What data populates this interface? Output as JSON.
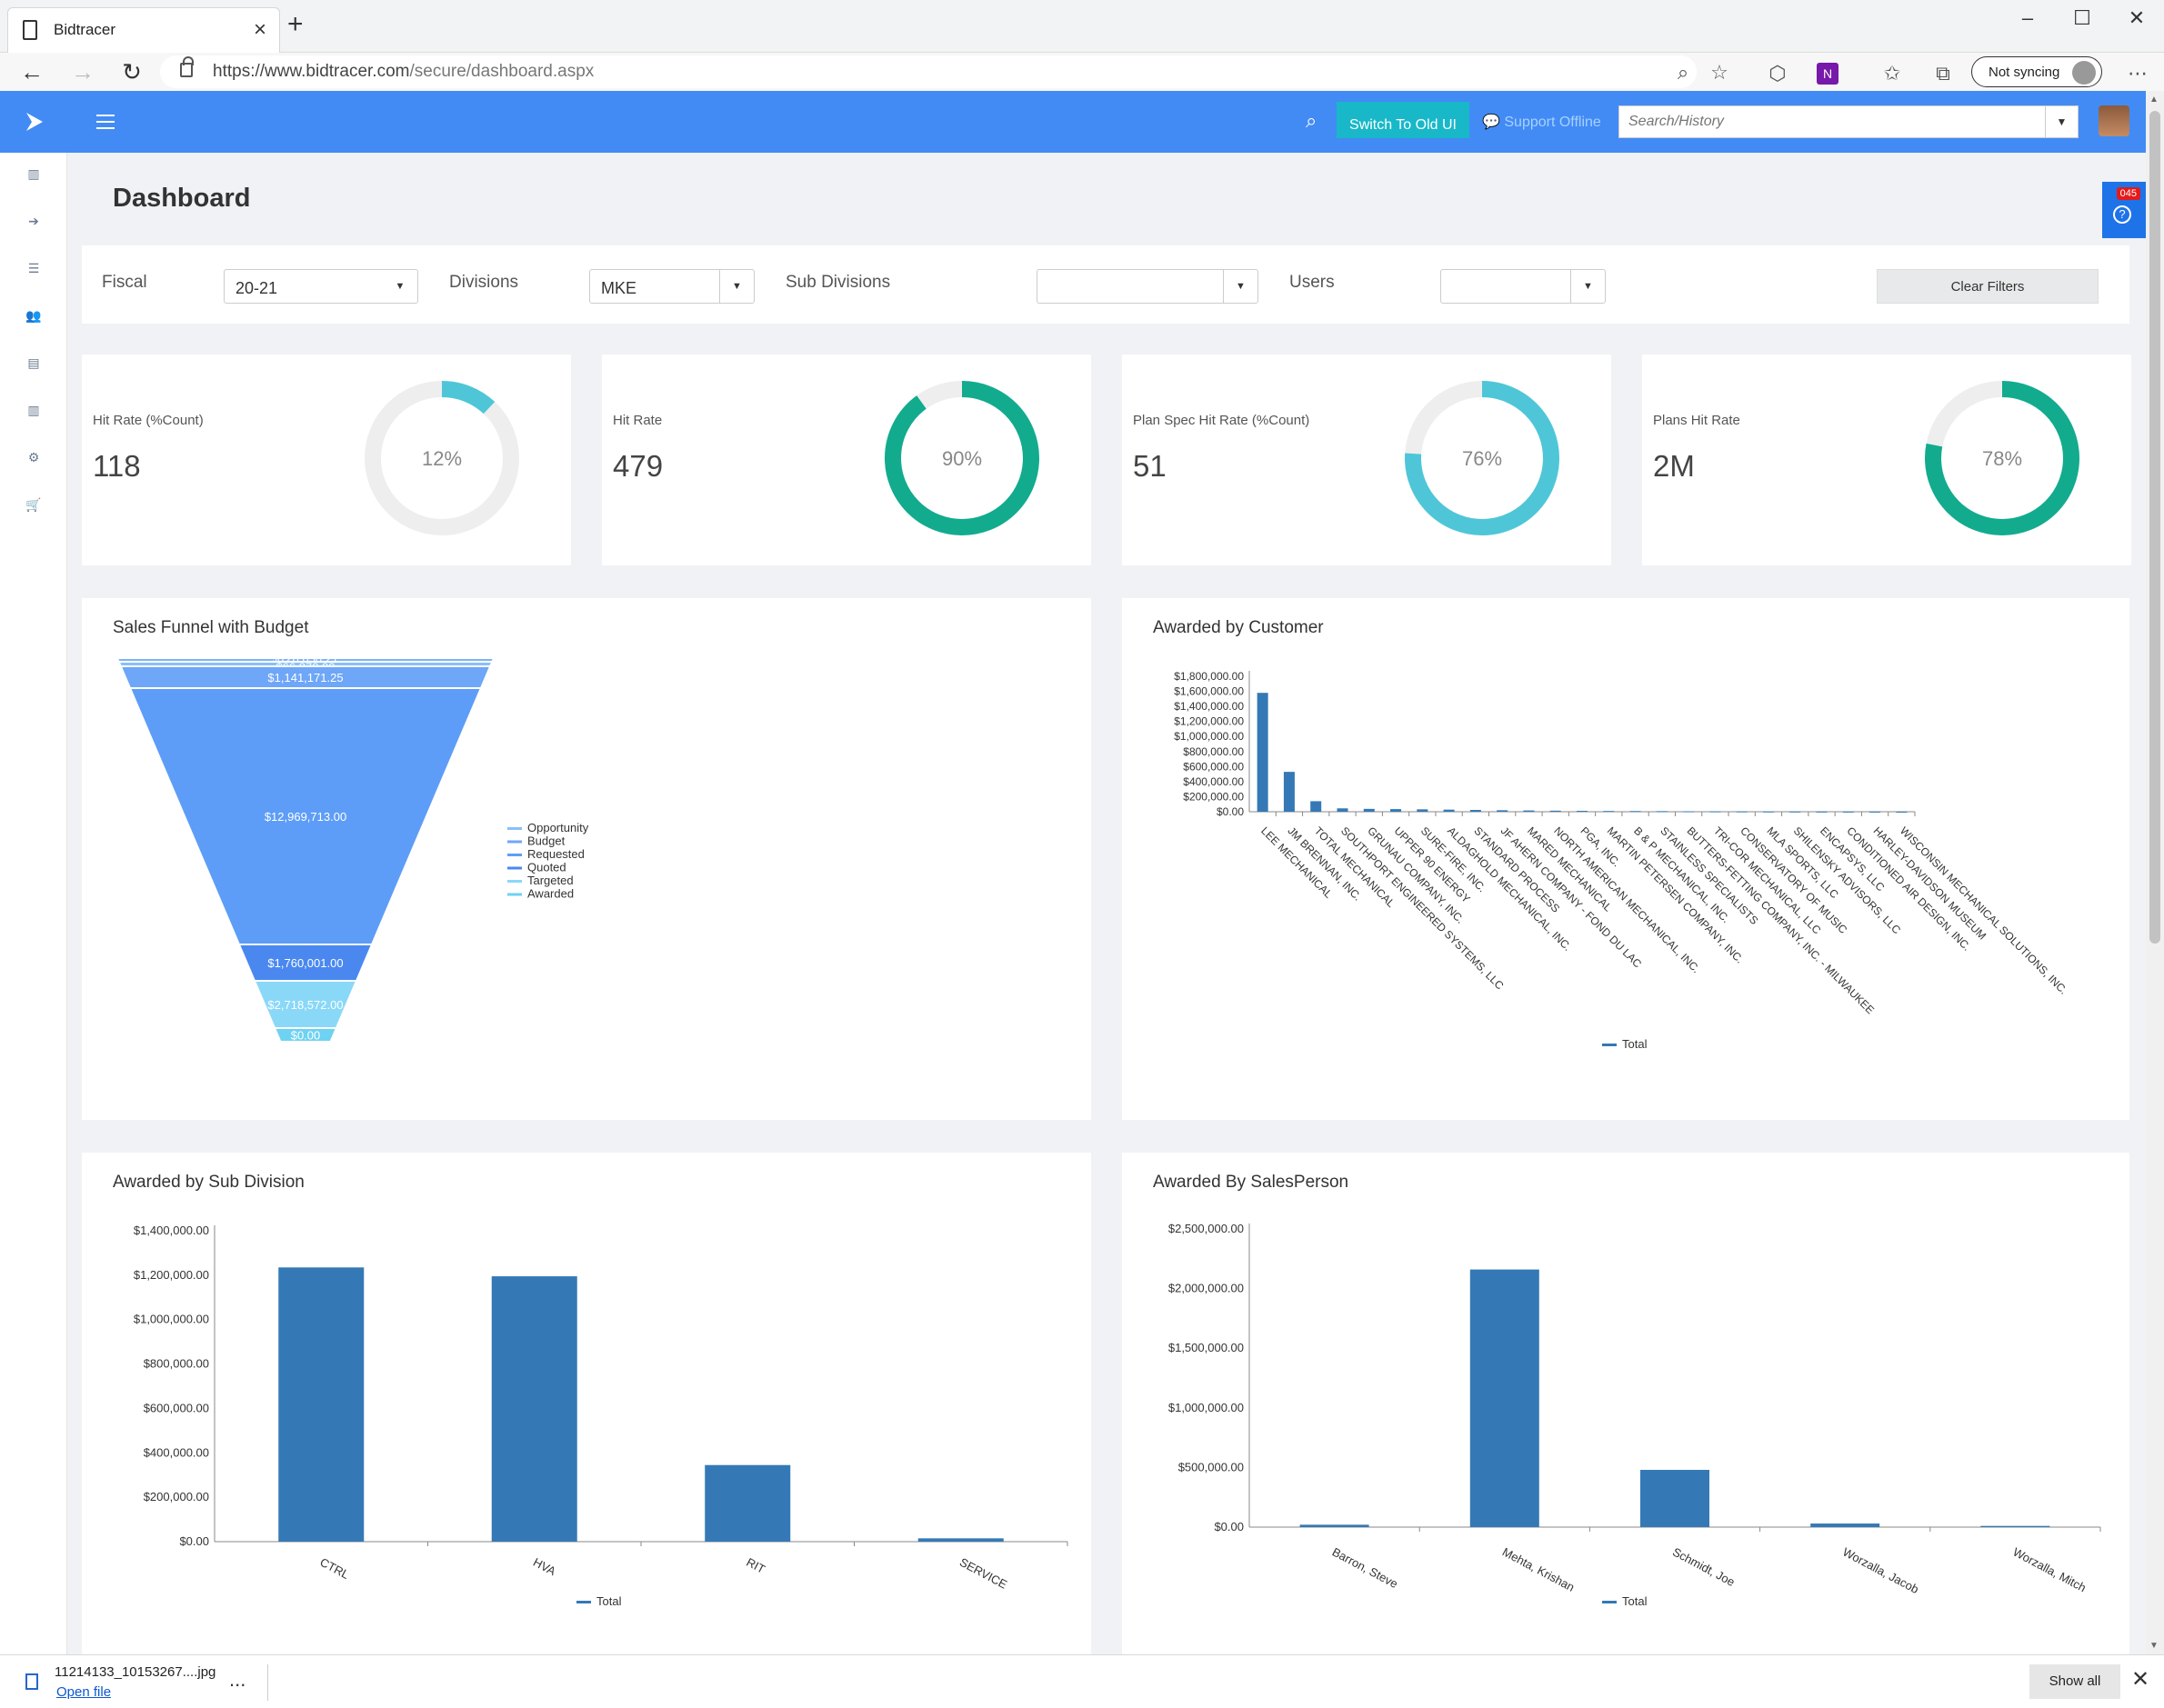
{
  "browser": {
    "tab_title": "Bidtracer",
    "url_main": "https://www.bidtracer.com",
    "url_path": "/secure/dashboard.aspx",
    "sync_label": "Not syncing"
  },
  "header": {
    "switch_label": "Switch To Old UI",
    "support_label": "Support Offline",
    "search_placeholder": "Search/History"
  },
  "sidebar": {
    "icons": [
      "chart-bar-icon",
      "sign-in-icon",
      "list-icon",
      "users-icon",
      "document-icon",
      "chart-bar-icon",
      "gear-icon",
      "cart-icon"
    ]
  },
  "page": {
    "title": "Dashboard",
    "help_count": "045"
  },
  "filters": {
    "fiscal_label": "Fiscal",
    "fiscal_value": "20-21",
    "divisions_label": "Divisions",
    "divisions_value": "MKE",
    "subdivisions_label": "Sub Divisions",
    "subdivisions_value": "",
    "users_label": "Users",
    "users_value": "",
    "clear_label": "Clear Filters"
  },
  "kpis": [
    {
      "label": "Hit Rate (%Count)",
      "value": "118",
      "percent_label": "12%",
      "percent": 12,
      "color": "#4fc6d8"
    },
    {
      "label": "Hit Rate",
      "value": "479",
      "percent_label": "90%",
      "percent": 90,
      "color": "#12ab8e"
    },
    {
      "label": "Plan Spec Hit Rate (%Count)",
      "value": "51",
      "percent_label": "76%",
      "percent": 76,
      "color": "#4fc6d8"
    },
    {
      "label": "Plans Hit Rate",
      "value": "2M",
      "percent_label": "78%",
      "percent": 78,
      "color": "#12ab8e"
    }
  ],
  "chart_data": [
    {
      "type": "funnel",
      "title": "Sales Funnel with Budget",
      "stages": [
        "Opportunity",
        "Budget",
        "Requested",
        "Quoted",
        "Targeted",
        "Awarded"
      ],
      "values": [
        12969713.0,
        1760001.0,
        2718572.0,
        126650.21,
        66870.0,
        0.0
      ],
      "segments": [
        {
          "label": "$126,650.21",
          "value": 126650.21
        },
        {
          "label": "$66,870.00",
          "value": 66870.0
        },
        {
          "label": "$1,141,171.25",
          "value": 1141171.25
        },
        {
          "label": "$12,969,713.00",
          "value": 12969713.0
        },
        {
          "label": "$1,760,001.00",
          "value": 1760001.0
        },
        {
          "label": "$2,718,572.00",
          "value": 2718572.0
        },
        {
          "label": "$0.00",
          "value": 0.0
        }
      ],
      "legend": [
        "Opportunity",
        "Budget",
        "Requested",
        "Quoted",
        "Targeted",
        "Awarded"
      ]
    },
    {
      "type": "bar",
      "title": "Awarded by Customer",
      "categories": [
        "LEE MECHANICAL",
        "JM BRENNAN, INC.",
        "TOTAL MECHANICAL",
        "SOUTHPORT ENGINEERED SYSTEMS, LLC",
        "GRUNAU COMPANY, INC.",
        "UPPER 90 ENERGY",
        "SURE-FIRE, INC.",
        "ALDAGHOLD MECHANICAL, INC.",
        "STANDARD PROCESS",
        "JF AHERN COMPANY - FOND DU LAC",
        "MARED MECHANICAL",
        "NORTH AMERICAN MECHANICAL, INC.",
        "PGA, INC.",
        "MARTIN PETERSEN COMPANY, INC.",
        "B & P MECHANICAL, INC.",
        "STAINLESS SPECIALISTS",
        "BUTTERS-FETTING COMPANY, INC. - MILWAUKEE",
        "TRI-COR MECHANICAL, LLC",
        "CONSERVATORY OF MUSIC",
        "MLA SPORTS, LLC",
        "SHILENSKY ADVISORS, LLC",
        "ENCAPSYS, LLC",
        "CONDITIONED AIR DESIGN, INC.",
        "HARLEY-DAVIDSON MUSEUM",
        "WISCONSIN MECHANICAL SOLUTIONS, INC."
      ],
      "series": [
        {
          "name": "Total",
          "values": [
            1580000,
            530000,
            140000,
            45000,
            38000,
            35000,
            32000,
            28000,
            24000,
            20000,
            17000,
            14000,
            12000,
            10000,
            9000,
            8000,
            6000,
            5000,
            4000,
            3000,
            2500,
            2000,
            1500,
            1000,
            500
          ]
        }
      ],
      "yticks": [
        "$1,800,000.00",
        "$1,600,000.00",
        "$1,400,000.00",
        "$1,200,000.00",
        "$1,000,000.00",
        "$800,000.00",
        "$600,000.00",
        "$400,000.00",
        "$200,000.00",
        "$0.00"
      ],
      "ylim": [
        0,
        1800000
      ],
      "legend": [
        "Total"
      ]
    },
    {
      "type": "bar",
      "title": "Awarded by Sub Division",
      "categories": [
        "CTRL",
        "HVA",
        "RIT",
        "SERVICE"
      ],
      "series": [
        {
          "name": "Total",
          "values": [
            1235000,
            1195000,
            345000,
            15000
          ]
        }
      ],
      "yticks": [
        "$1,400,000.00",
        "$1,200,000.00",
        "$1,000,000.00",
        "$800,000.00",
        "$600,000.00",
        "$400,000.00",
        "$200,000.00",
        "$0.00"
      ],
      "ylim": [
        0,
        1400000
      ],
      "legend": [
        "Total"
      ]
    },
    {
      "type": "bar",
      "title": "Awarded By SalesPerson",
      "categories": [
        "Barron, Steve",
        "Mehta, Krishan",
        "Schmidt, Joe",
        "Worzalla, Jacob",
        "Worzalla, Mitch"
      ],
      "series": [
        {
          "name": "Total",
          "values": [
            20000,
            2160000,
            480000,
            30000,
            10000
          ]
        }
      ],
      "yticks": [
        "$2,500,000.00",
        "$2,000,000.00",
        "$1,500,000.00",
        "$1,000,000.00",
        "$500,000.00",
        "$0.00"
      ],
      "ylim": [
        0,
        2500000
      ],
      "legend": [
        "Total"
      ]
    }
  ],
  "download": {
    "filename": "11214133_10153267....jpg",
    "open_label": "Open file",
    "more_label": "...",
    "show_all_label": "Show all"
  }
}
